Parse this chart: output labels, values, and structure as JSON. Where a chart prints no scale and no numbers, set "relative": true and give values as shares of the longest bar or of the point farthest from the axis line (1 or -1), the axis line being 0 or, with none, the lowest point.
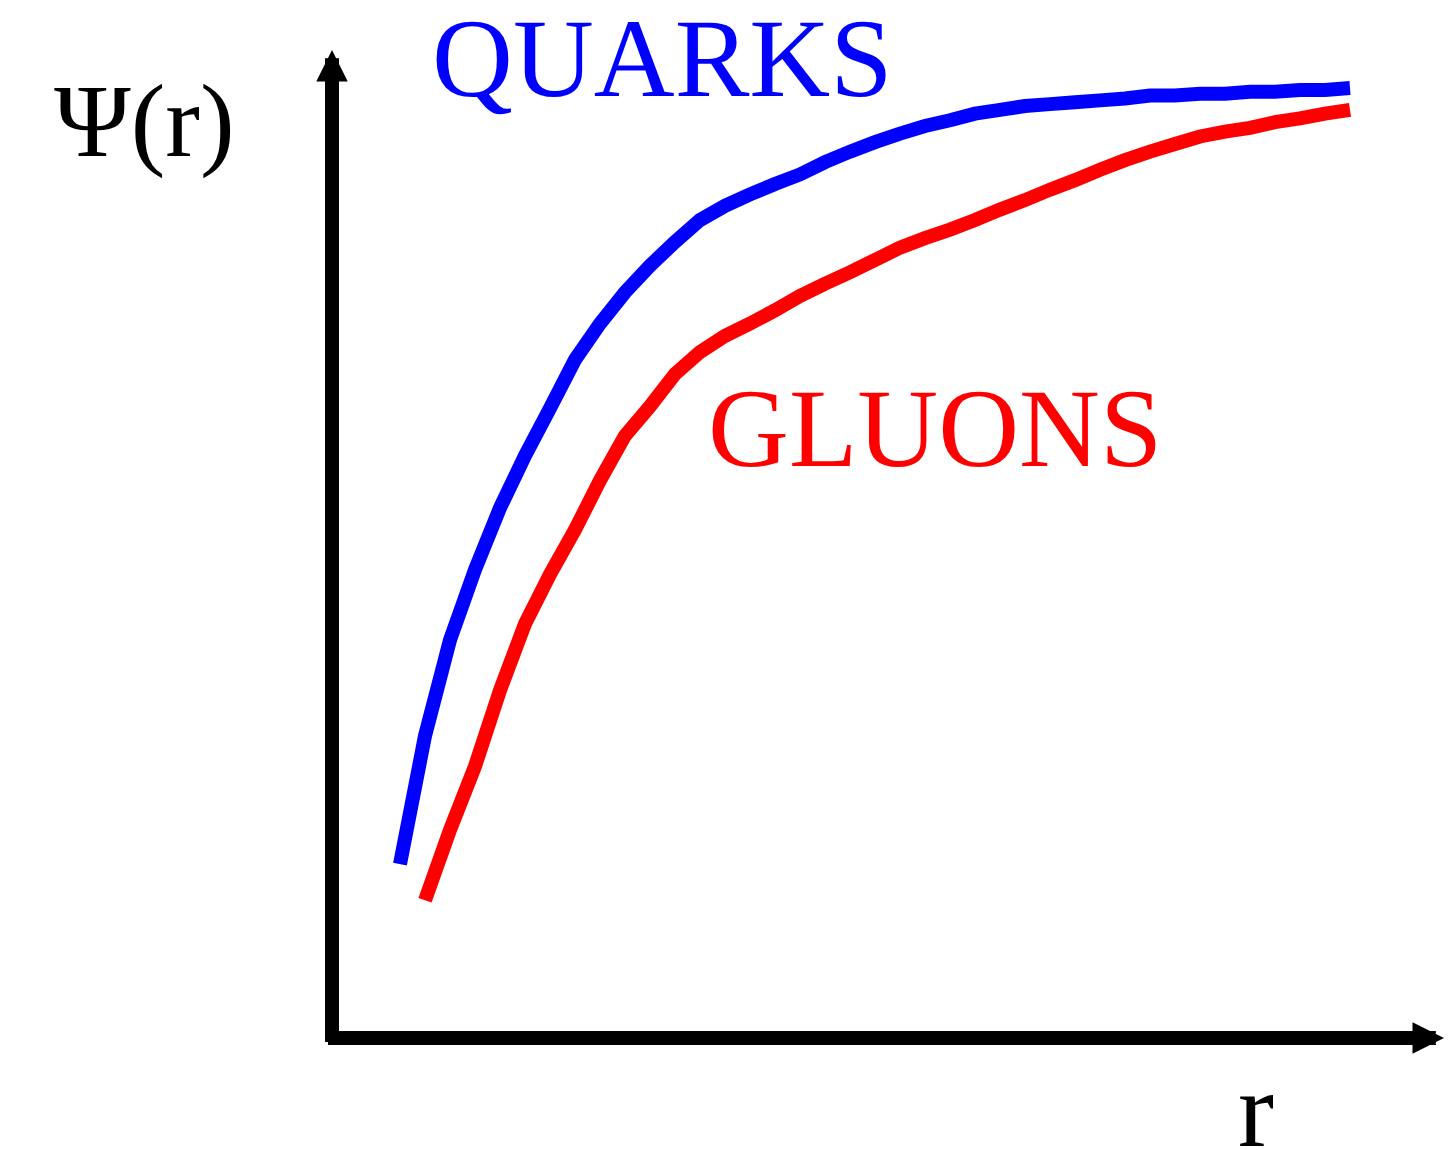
{
  "chart_data": {
    "type": "line",
    "relative": true,
    "xlabel": "r",
    "ylabel": "Ψ(r)",
    "line_style": "solid",
    "categories": [
      null,
      null,
      null,
      null,
      null,
      null,
      null,
      null,
      null,
      null,
      null,
      null,
      null,
      null,
      null,
      null,
      null,
      null,
      null,
      null,
      null,
      null,
      null,
      null,
      null,
      null,
      null,
      null,
      null,
      null,
      null,
      null,
      null,
      null,
      null,
      null,
      null,
      null,
      null
    ],
    "series": [
      {
        "name": "QUARKS",
        "color": "#0000ff",
        "values": [
          0.183,
          0.318,
          0.419,
          0.493,
          0.558,
          0.613,
          0.663,
          0.714,
          0.752,
          0.785,
          0.813,
          0.838,
          0.861,
          0.876,
          0.888,
          0.899,
          0.909,
          0.922,
          0.933,
          0.943,
          0.952,
          0.96,
          0.966,
          0.973,
          0.977,
          0.981,
          0.983,
          0.985,
          0.987,
          0.989,
          0.992,
          0.992,
          0.994,
          0.994,
          0.996,
          0.996,
          0.998,
          0.998,
          1.0
        ]
      },
      {
        "name": "GLUONS",
        "color": "#ff0000",
        "values": [
          null,
          0.145,
          0.219,
          0.286,
          0.366,
          0.436,
          0.488,
          0.535,
          0.587,
          0.634,
          0.665,
          0.699,
          0.722,
          0.739,
          0.752,
          0.766,
          0.781,
          0.794,
          0.806,
          0.819,
          0.832,
          0.842,
          0.851,
          0.861,
          0.872,
          0.882,
          0.893,
          0.903,
          0.914,
          0.924,
          0.933,
          0.941,
          0.949,
          0.954,
          0.958,
          0.964,
          0.968,
          0.973,
          0.977
        ]
      }
    ]
  }
}
